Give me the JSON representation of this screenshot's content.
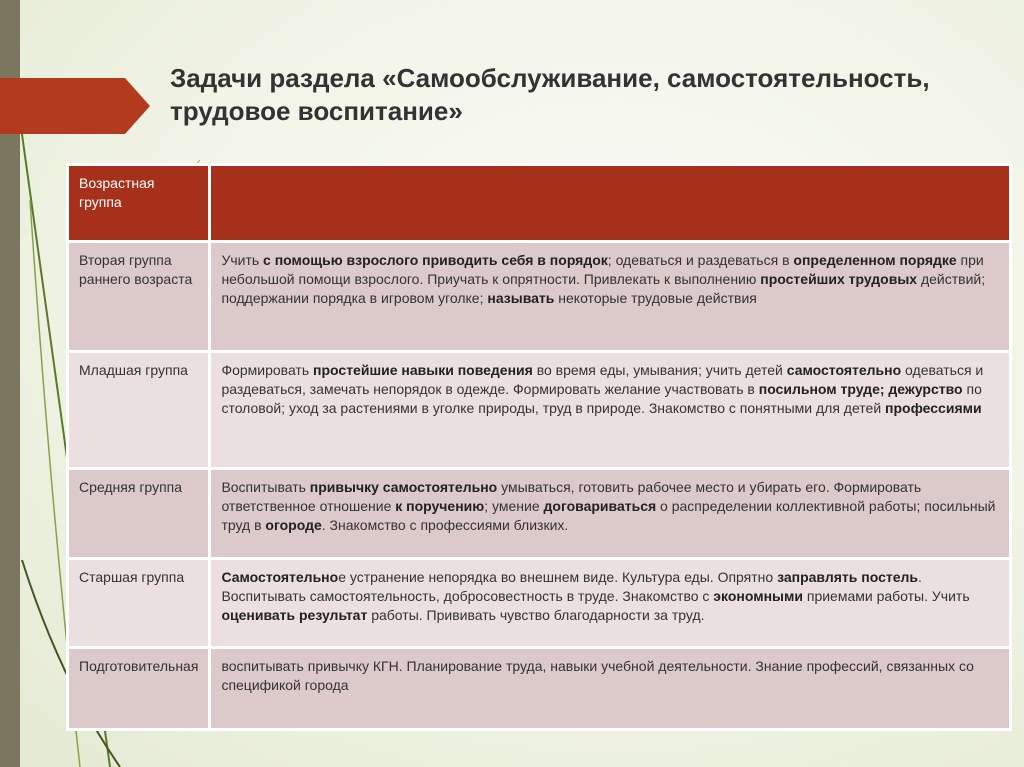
{
  "title": "Задачи раздела «Самообслуживание, самостоятельность, трудовое воспитание»",
  "table": {
    "header": {
      "group": "Возрастная группа",
      "content": ""
    },
    "rows": [
      {
        "group": "Вторая группа раннего возраста",
        "segments": [
          {
            "t": "Учить ",
            "b": false
          },
          {
            "t": "с помощью взрослого приводить себя в порядок",
            "b": true
          },
          {
            "t": "; одеваться и раздеваться  в ",
            "b": false
          },
          {
            "t": "определенном порядке",
            "b": true
          },
          {
            "t": " при небольшой помощи взрослого. Приучать к опрятности. Привлекать к выполнению ",
            "b": false
          },
          {
            "t": "простейших трудовых",
            "b": true
          },
          {
            "t": " действий; поддержании порядка в игровом уголке; ",
            "b": false
          },
          {
            "t": "называть",
            "b": true
          },
          {
            "t": " некоторые трудовые действия",
            "b": false
          }
        ]
      },
      {
        "group": "Младшая группа",
        "segments": [
          {
            "t": "Формировать ",
            "b": false
          },
          {
            "t": "простейшие навыки поведения",
            "b": true
          },
          {
            "t": " во время еды, умывания; учить детей ",
            "b": false
          },
          {
            "t": "самостоятельно",
            "b": true
          },
          {
            "t": " одеваться и раздеваться, замечать непорядок в одежде. Формировать желание участвовать в ",
            "b": false
          },
          {
            "t": "посильном труде; дежурство",
            "b": true
          },
          {
            "t": " по столовой; уход за растениями в уголке природы, труд в природе. Знакомство с понятными для детей ",
            "b": false
          },
          {
            "t": "профессиями",
            "b": true
          }
        ]
      },
      {
        "group": "Средняя группа",
        "segments": [
          {
            "t": "Воспитывать ",
            "b": false
          },
          {
            "t": "привычку самостоятельно",
            "b": true
          },
          {
            "t": " умываться, готовить рабочее место и убирать его. Формировать ответственное отношение ",
            "b": false
          },
          {
            "t": "к поручению",
            "b": true
          },
          {
            "t": "; умение ",
            "b": false
          },
          {
            "t": "договариваться",
            "b": true
          },
          {
            "t": " о распределении коллективной работы; посильный труд в ",
            "b": false
          },
          {
            "t": "огороде",
            "b": true
          },
          {
            "t": ". Знакомство с профессиями близких.",
            "b": false
          }
        ]
      },
      {
        "group": "Старшая группа",
        "segments": [
          {
            "t": "Самостоятельно",
            "b": true
          },
          {
            "t": "е устранение непорядка во внешнем виде. Культура еды. Опрятно ",
            "b": false
          },
          {
            "t": "заправлять постель",
            "b": true
          },
          {
            "t": ". Воспитывать самостоятельность, добросовестность в труде. Знакомство с  ",
            "b": false
          },
          {
            "t": "экономными",
            "b": true
          },
          {
            "t": " приемами работы. Учить ",
            "b": false
          },
          {
            "t": "оценивать результат",
            "b": true
          },
          {
            "t": " работы. Прививать чувство благодарности за труд.",
            "b": false
          }
        ]
      },
      {
        "group": "Подготовительная",
        "segments": [
          {
            "t": " воспитывать привычку КГН. Планирование труда, навыки учебной деятельности.  Знание профессий, связанных со спецификой города",
            "b": false
          }
        ]
      }
    ]
  },
  "colors": {
    "header": "#a6301a",
    "arrow": "#b33a1c",
    "row_dark": "#dcc9c9",
    "row_light": "#ecdfdf"
  }
}
